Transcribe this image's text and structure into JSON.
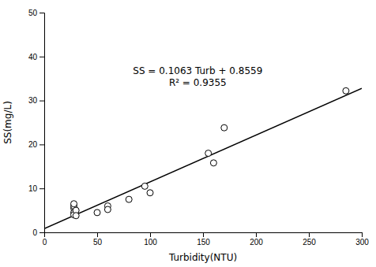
{
  "chart_data": {
    "type": "scatter",
    "xlabel": "Turbidity(NTU)",
    "ylabel": "SS(mg/L)",
    "xlim": [
      0,
      300
    ],
    "ylim": [
      0,
      50
    ],
    "xticks": [
      0,
      50,
      100,
      150,
      200,
      250,
      300
    ],
    "yticks": [
      0,
      10,
      20,
      30,
      40,
      50
    ],
    "grid": false,
    "series": [
      {
        "type": "scatter",
        "color": "black",
        "marker": "open-circle",
        "x": [
          28,
          28,
          28,
          28,
          28,
          30,
          30,
          50,
          60,
          60,
          80,
          95,
          100,
          155,
          160,
          170,
          285
        ],
        "values": [
          5.5,
          6.0,
          6.5,
          4.5,
          4.0,
          5.0,
          3.8,
          4.5,
          6.0,
          5.2,
          7.5,
          10.5,
          9.0,
          18.0,
          15.8,
          23.8,
          32.2
        ]
      },
      {
        "type": "line",
        "color": "black",
        "line_style": "solid",
        "x": [
          0,
          300
        ],
        "values": [
          0.8559,
          32.7459
        ]
      }
    ],
    "annotations": [
      {
        "x": 145,
        "y": 38,
        "lines": [
          "SS = 0.1063 Turb + 0.8559",
          "R² = 0.9355"
        ]
      }
    ]
  }
}
